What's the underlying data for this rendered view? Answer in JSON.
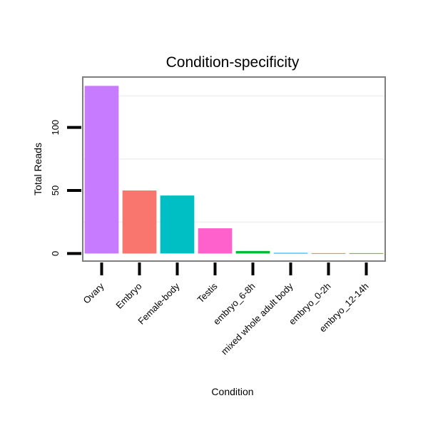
{
  "chart_data": {
    "type": "bar",
    "title": "Condition-specificity",
    "xlabel": "Condition",
    "ylabel": "Total Reads",
    "categories": [
      "Ovary",
      "Embryo",
      "Female-body",
      "Testis",
      "embryo_6-8h",
      "mixed whole adult body",
      "embryo_0-2h",
      "embryo_12-14h"
    ],
    "values": [
      133,
      50,
      46,
      20,
      2,
      0.5,
      0.3,
      0.3
    ],
    "colors": [
      "#C77CFF",
      "#F8766D",
      "#00BFC4",
      "#FF61CC",
      "#00BA38",
      "#00A9FF",
      "#CD9600",
      "#7CAE00"
    ],
    "yticks": [
      0,
      50,
      100
    ],
    "ylim": [
      -6,
      140
    ],
    "grid": true,
    "legend": "none"
  }
}
